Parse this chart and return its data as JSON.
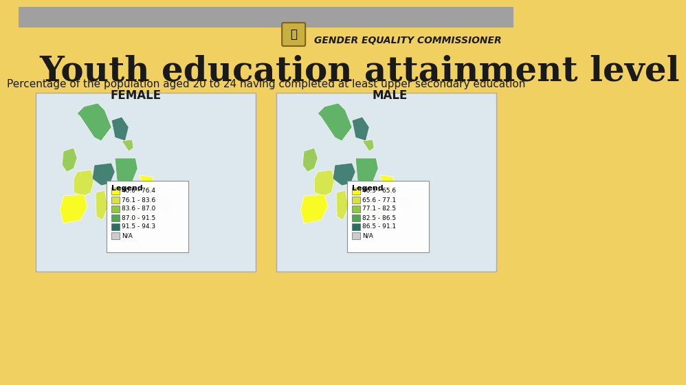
{
  "background_color": "#f0d060",
  "header_bar_color": "#a0a0a0",
  "title": "Youth education attainment level",
  "subtitle": "Percentage of the population aged 20 to 24 having completed at least upper secondary education",
  "label_female": "FEMALE",
  "label_male": "MALE",
  "org_name": "GENDER EQUALITY COMMISSIONER",
  "legend_female_title": "Legend",
  "legend_female_ranges": [
    "40.0 - 76.4",
    "76.1 - 83.6",
    "83.6 - 87.0",
    "87.0 - 91.5",
    "91.5 - 94.3",
    "N/A"
  ],
  "legend_male_title": "Legend",
  "legend_male_ranges": [
    "46.3 - 65.6",
    "65.6 - 77.1",
    "77.1 - 82.5",
    "82.5 - 86.5",
    "86.5 - 91.1",
    "N/A"
  ],
  "legend_colors": [
    "#ffff00",
    "#d4e632",
    "#8dc840",
    "#4aaa50",
    "#2a7060",
    "#cccccc"
  ],
  "map_placeholder_color": "#e8f4e8",
  "map_border_color": "#ffffff",
  "title_fontsize": 36,
  "subtitle_fontsize": 11,
  "label_fontsize": 12
}
